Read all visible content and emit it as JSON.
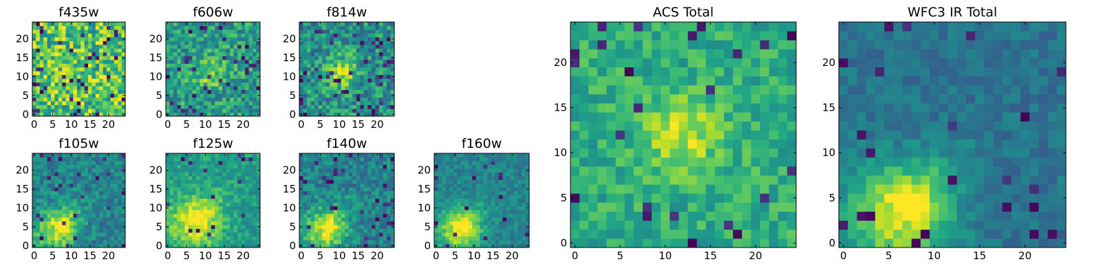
{
  "chart_data": {
    "type": "heatmap",
    "colormap": "viridis",
    "panels": [
      {
        "id": "f435w",
        "title": "f435w",
        "grid": [
          25,
          25
        ],
        "xlim": [
          0,
          24
        ],
        "ylim": [
          0,
          24
        ],
        "xticks": [
          0,
          5,
          10,
          15,
          20
        ],
        "yticks": [
          0,
          5,
          10,
          15,
          20
        ],
        "xtick_labels": [
          "0",
          "5",
          "10",
          "15",
          "20"
        ],
        "ytick_labels": [
          "0",
          "5",
          "10",
          "15",
          "20"
        ],
        "pattern": "noise",
        "mean": 0.72,
        "noise": 0.28,
        "dark_fraction": 0.06,
        "seed": 11
      },
      {
        "id": "f606w",
        "title": "f606w",
        "grid": [
          25,
          25
        ],
        "xlim": [
          0,
          24
        ],
        "ylim": [
          0,
          24
        ],
        "xticks": [
          0,
          5,
          10,
          15,
          20
        ],
        "yticks": [
          0,
          5,
          10,
          15,
          20
        ],
        "xtick_labels": [
          "0",
          "5",
          "10",
          "15",
          "20"
        ],
        "ytick_labels": [
          "0",
          "5",
          "10",
          "15",
          "20"
        ],
        "pattern": "blob",
        "base": 0.55,
        "noise": 0.3,
        "blob_center": [
          11,
          11
        ],
        "blob_sigma": 3,
        "blob_amp": 0.25,
        "dark_fraction": 0.05,
        "seed": 23
      },
      {
        "id": "f814w",
        "title": "f814w",
        "grid": [
          25,
          25
        ],
        "xlim": [
          0,
          24
        ],
        "ylim": [
          0,
          24
        ],
        "xticks": [
          0,
          5,
          10,
          15,
          20
        ],
        "yticks": [
          0,
          5,
          10,
          15,
          20
        ],
        "xtick_labels": [
          "0",
          "5",
          "10",
          "15",
          "20"
        ],
        "ytick_labels": [
          "0",
          "5",
          "10",
          "15",
          "20"
        ],
        "pattern": "blob",
        "base": 0.5,
        "noise": 0.32,
        "blob_center": [
          11,
          11
        ],
        "blob_sigma": 3,
        "blob_amp": 0.35,
        "dark_fraction": 0.07,
        "seed": 37
      },
      {
        "id": "f105w",
        "title": "f105w",
        "grid": [
          25,
          25
        ],
        "xlim": [
          0,
          24
        ],
        "ylim": [
          0,
          24
        ],
        "xticks": [
          0,
          5,
          10,
          15,
          20
        ],
        "yticks": [
          0,
          5,
          10,
          15,
          20
        ],
        "xtick_labels": [
          "0",
          "5",
          "10",
          "15",
          "20"
        ],
        "ytick_labels": [
          "0",
          "5",
          "10",
          "15",
          "20"
        ],
        "pattern": "smooth",
        "base": 0.45,
        "noise": 0.2,
        "blob_center": [
          6,
          4
        ],
        "blob_sigma": 4,
        "blob_amp": 0.45,
        "dark_fraction": 0.05,
        "seed": 41
      },
      {
        "id": "f125w",
        "title": "f125w",
        "grid": [
          25,
          25
        ],
        "xlim": [
          0,
          24
        ],
        "ylim": [
          0,
          24
        ],
        "xticks": [
          0,
          5,
          10,
          15,
          20
        ],
        "yticks": [
          0,
          5,
          10,
          15,
          20
        ],
        "xtick_labels": [
          "0",
          "5",
          "10",
          "15",
          "20"
        ],
        "ytick_labels": [
          "0",
          "5",
          "10",
          "15",
          "20"
        ],
        "pattern": "smooth",
        "base": 0.55,
        "noise": 0.18,
        "blob_center": [
          7,
          6
        ],
        "blob_sigma": 5,
        "blob_amp": 0.4,
        "dark_fraction": 0.03,
        "seed": 53
      },
      {
        "id": "f140w",
        "title": "f140w",
        "grid": [
          25,
          25
        ],
        "xlim": [
          0,
          24
        ],
        "ylim": [
          0,
          24
        ],
        "xticks": [
          0,
          5,
          10,
          15,
          20
        ],
        "yticks": [
          0,
          5,
          10,
          15,
          20
        ],
        "xtick_labels": [
          "0",
          "5",
          "10",
          "15",
          "20"
        ],
        "ytick_labels": [
          "0",
          "5",
          "10",
          "15",
          "20"
        ],
        "pattern": "smooth",
        "base": 0.45,
        "noise": 0.2,
        "blob_center": [
          6,
          4
        ],
        "blob_sigma": 4,
        "blob_amp": 0.45,
        "dark_fraction": 0.05,
        "seed": 67
      },
      {
        "id": "f160w",
        "title": "f160w",
        "grid": [
          25,
          25
        ],
        "xlim": [
          0,
          24
        ],
        "ylim": [
          0,
          24
        ],
        "xticks": [
          0,
          5,
          10,
          15,
          20
        ],
        "yticks": [
          0,
          5,
          10,
          15,
          20
        ],
        "xtick_labels": [
          "0",
          "5",
          "10",
          "15",
          "20"
        ],
        "ytick_labels": [
          "0",
          "5",
          "10",
          "15",
          "20"
        ],
        "pattern": "smooth",
        "base": 0.45,
        "noise": 0.15,
        "blob_center": [
          6,
          4
        ],
        "blob_sigma": 4,
        "blob_amp": 0.5,
        "dark_fraction": 0.03,
        "seed": 79
      },
      {
        "id": "acs_total",
        "title": "ACS Total",
        "grid": [
          25,
          25
        ],
        "xlim": [
          0,
          24
        ],
        "ylim": [
          0,
          24
        ],
        "xticks": [
          0,
          5,
          10,
          15,
          20
        ],
        "yticks": [
          0,
          5,
          10,
          15,
          20
        ],
        "xtick_labels": [
          "0",
          "5",
          "10",
          "15",
          "20"
        ],
        "ytick_labels": [
          "0",
          "5",
          "10",
          "15",
          "20"
        ],
        "pattern": "blob",
        "base": 0.62,
        "noise": 0.2,
        "blob_center": [
          12,
          12
        ],
        "blob_sigma": 3,
        "blob_amp": 0.3,
        "dark_fraction": 0.04,
        "seed": 97
      },
      {
        "id": "wfc3_ir_total",
        "title": "WFC3 IR Total",
        "grid": [
          25,
          25
        ],
        "xlim": [
          0,
          24
        ],
        "ylim": [
          0,
          24
        ],
        "xticks": [
          0,
          5,
          10,
          15,
          20
        ],
        "yticks": [
          0,
          5,
          10,
          15,
          20
        ],
        "xtick_labels": [
          "0",
          "5",
          "10",
          "15",
          "20"
        ],
        "ytick_labels": [
          "0",
          "5",
          "10",
          "15",
          "20"
        ],
        "pattern": "smooth",
        "base": 0.38,
        "noise": 0.12,
        "blob_center": [
          6,
          3
        ],
        "blob_sigma": 4,
        "blob_amp": 0.55,
        "dark_fraction": 0.04,
        "seed": 113
      }
    ]
  }
}
